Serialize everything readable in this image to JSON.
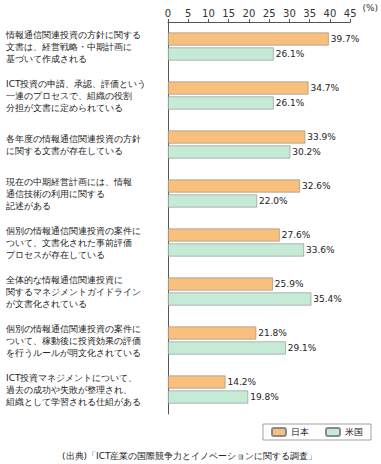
{
  "chart_data": {
    "type": "bar",
    "orientation": "horizontal",
    "x_label": "(%)",
    "source": "(出典)「ICT産業の国際競争力とイノベーションに関する調査」",
    "categories": [
      "情報通信関連投資の方針に関する\n文書は、経営戦略・中期計画に\n基づいて作成される",
      "ICT投資の申請、承認、評価という\n一連のプロセスで、組織の役割\n分担が文書に定められている",
      "各年度の情報通信関連投資の方針\nに関する文書が存在している",
      "現在の中期経営計画には、情報\n通信技術の利用に関する\n記述がある",
      "個別の情報通信関連投資の案件に\nついて、文書化された事前評価\nプロセスが存在している",
      "全体的な情報通信関連投資に\n関するマネジメントガイドライン\nが文書化されている",
      "個別の情報通信関連投資の案件に\nついて、稼動後に投資効果の評価\nを行うルールが明文化されている",
      "ICT投資マネジメントについて、\n過去の成功や失敗が整理され、\n組織として学習される仕組がある"
    ],
    "series": [
      {
        "name": "日本",
        "color": "#f9bf7c",
        "values": [
          39.7,
          34.7,
          33.9,
          32.6,
          27.6,
          25.9,
          21.8,
          14.2
        ],
        "value_labels": [
          "39.7%",
          "34.7%",
          "33.9%",
          "32.6%",
          "27.6%",
          "25.9%",
          "21.8%",
          "14.2%"
        ]
      },
      {
        "name": "米国",
        "color": "#c5ebd6",
        "values": [
          26.1,
          26.1,
          30.2,
          22.0,
          33.6,
          35.4,
          29.1,
          19.8
        ],
        "value_labels": [
          "26.1%",
          "26.1%",
          "30.2%",
          "22.0%",
          "33.6%",
          "35.4%",
          "29.1%",
          "19.8%"
        ]
      }
    ],
    "xlim": [
      0,
      45
    ],
    "xticks": [
      0,
      5,
      10,
      15,
      20,
      25,
      30,
      35,
      40,
      45
    ],
    "grid": false,
    "legend": "bottom-right",
    "data_labels": true
  }
}
